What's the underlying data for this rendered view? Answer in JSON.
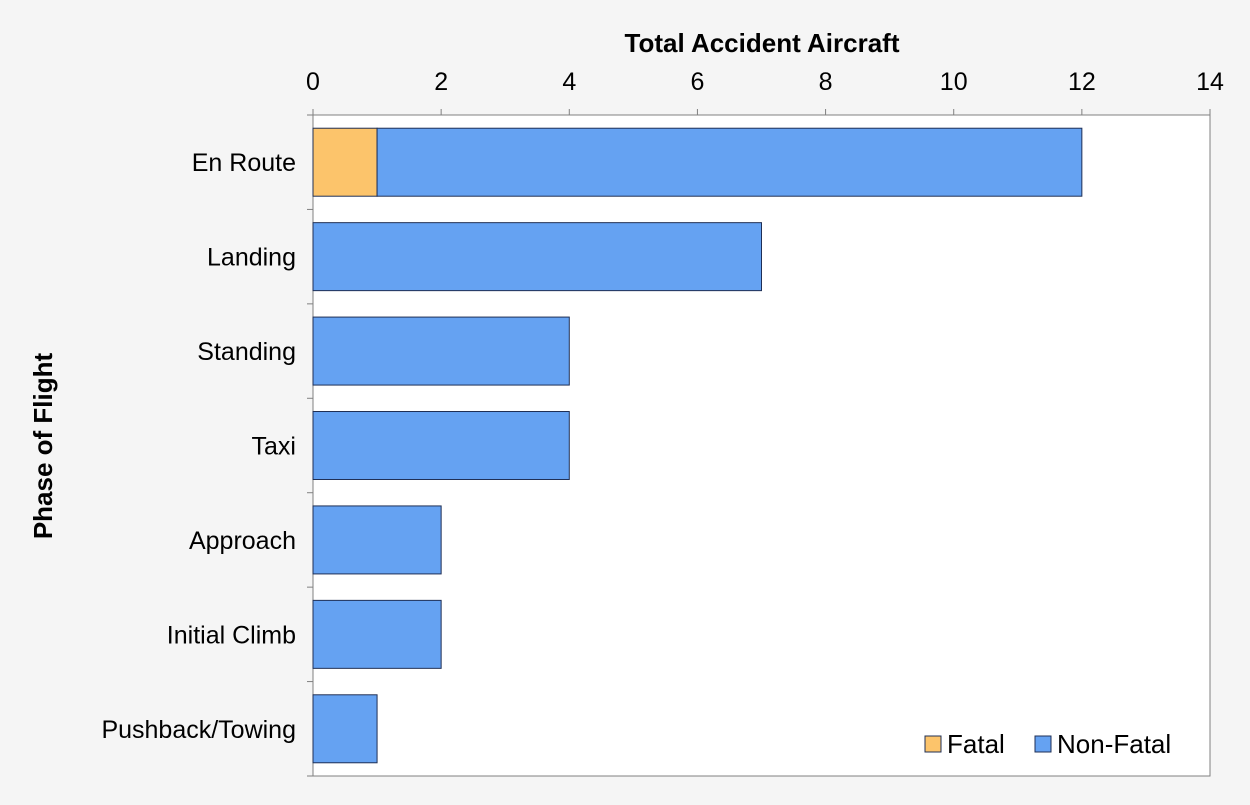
{
  "chart_data": {
    "type": "bar",
    "orientation": "horizontal",
    "stacked": true,
    "xlabel": "Total Accident Aircraft",
    "ylabel": "Phase of Flight",
    "xlim": [
      0,
      14
    ],
    "x_ticks": [
      0,
      2,
      4,
      6,
      8,
      10,
      12,
      14
    ],
    "x_axis_position": "top",
    "grid": false,
    "legend_position": "bottom-right",
    "categories": [
      "En Route",
      "Landing",
      "Standing",
      "Taxi",
      "Approach",
      "Initial Climb",
      "Pushback/Towing"
    ],
    "series": [
      {
        "name": "Fatal",
        "color": "#fcc46b",
        "values": [
          1,
          0,
          0,
          0,
          0,
          0,
          0
        ]
      },
      {
        "name": "Non-Fatal",
        "color": "#65a2f2",
        "values": [
          11,
          7,
          4,
          4,
          2,
          2,
          1
        ]
      }
    ]
  }
}
